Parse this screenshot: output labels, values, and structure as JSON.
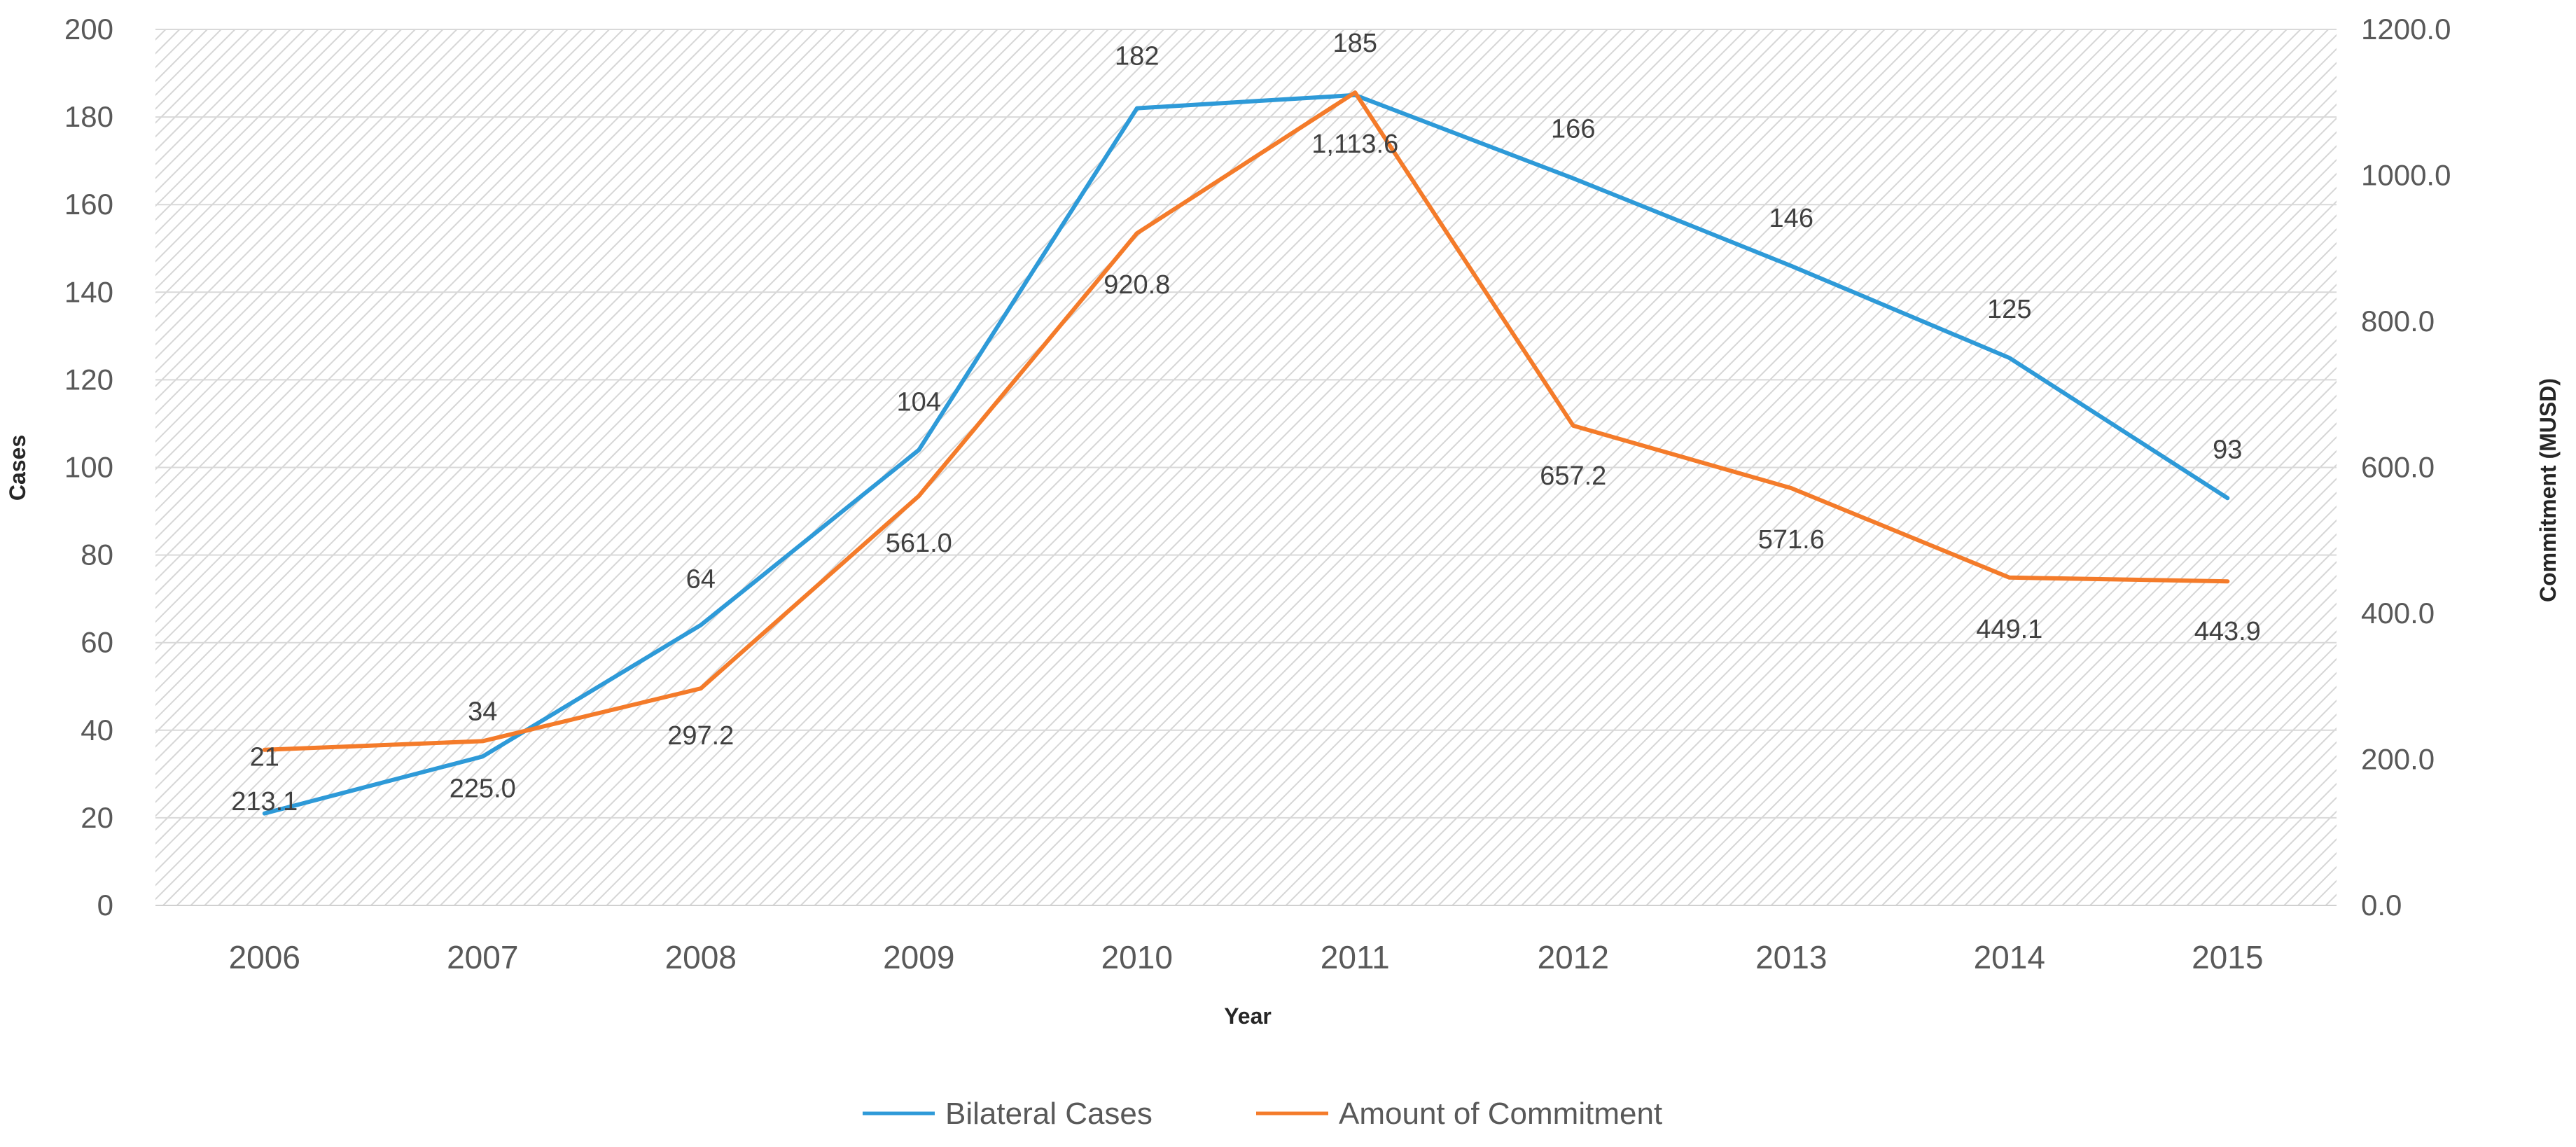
{
  "chart_data": {
    "type": "line",
    "title": "",
    "xlabel": "Year",
    "ylabel": "Cases",
    "y2label": "Commitment (MUSD)",
    "categories": [
      "2006",
      "2007",
      "2008",
      "2009",
      "2010",
      "2011",
      "2012",
      "2013",
      "2014",
      "2015"
    ],
    "ylim": [
      0,
      200
    ],
    "y2lim": [
      0,
      1200
    ],
    "yticks": [
      "0",
      "20",
      "40",
      "60",
      "80",
      "100",
      "120",
      "140",
      "160",
      "180",
      "200"
    ],
    "y2ticks": [
      "0.0",
      "200.0",
      "400.0",
      "600.0",
      "800.0",
      "1000.0",
      "1200.0"
    ],
    "grid": true,
    "legend_position": "bottom",
    "series": [
      {
        "name": "Bilateral Cases",
        "axis": "left",
        "color": "#2E9AD8",
        "values": [
          21,
          34,
          64,
          104,
          182,
          185,
          166,
          146,
          125,
          93
        ],
        "labels": [
          "21",
          "34",
          "64",
          "104",
          "182",
          "185",
          "166",
          "146",
          "125",
          "93"
        ]
      },
      {
        "name": "Amount of Commitment",
        "axis": "right",
        "color": "#F47B2A",
        "values": [
          213.1,
          225.0,
          297.2,
          561.0,
          920.8,
          1113.6,
          657.2,
          571.6,
          449.1,
          443.9
        ],
        "labels": [
          "213.1",
          "225.0",
          "297.2",
          "561.0",
          "920.8",
          "1,113.6",
          "657.2",
          "571.6",
          "449.1",
          "443.9"
        ]
      }
    ]
  }
}
